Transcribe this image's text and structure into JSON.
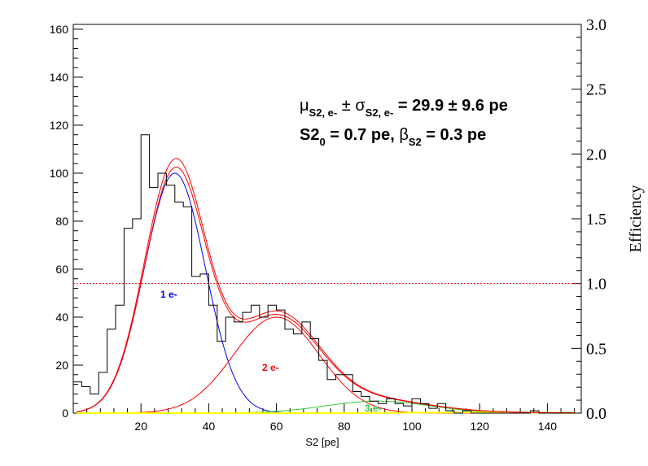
{
  "chart_data": {
    "type": "line",
    "xlabel": "S2 [pe]",
    "ylabel": "",
    "y2label": "Efficiency",
    "xlim": [
      0,
      150
    ],
    "ylim": [
      0,
      162
    ],
    "y2lim": [
      0,
      3.0
    ],
    "x_ticks": [
      20,
      40,
      60,
      80,
      100,
      120,
      140
    ],
    "y_ticks": [
      0,
      20,
      40,
      60,
      80,
      100,
      120,
      140,
      160
    ],
    "y2_ticks": [
      "0.0",
      "0.5",
      "1.0",
      "1.5",
      "2.0",
      "2.5",
      "3.0"
    ],
    "grid": false,
    "annotations": {
      "line1": {
        "mu": "μ",
        "mu_sub": "S2, e-",
        "pm1": " ± ",
        "sigma": "σ",
        "sigma_sub": "S2, e-",
        "value": " = 29.9 ± 9.6 pe"
      },
      "line2": {
        "s2": "S2",
        "s2_sub": "0",
        "s2_value": " = 0.7 pe,  ",
        "beta": "β",
        "beta_sub": "S2",
        "beta_value": " = 0.3 pe"
      }
    },
    "histogram": {
      "name": "",
      "color": "#000000",
      "bin_width": 2.5,
      "bin_start": 0,
      "counts": [
        13,
        11,
        8,
        17,
        35,
        45,
        77,
        81,
        116,
        94,
        100,
        95,
        88,
        86,
        57,
        58,
        45,
        30,
        40,
        38,
        42,
        45,
        40,
        45,
        43,
        35,
        33,
        38,
        31,
        22,
        14,
        16,
        16,
        9,
        7,
        5,
        4,
        6,
        4,
        3,
        6,
        4,
        2,
        4,
        1,
        0,
        1,
        0,
        0,
        0,
        0,
        0,
        0,
        0,
        1,
        0,
        0,
        0,
        0,
        0
      ]
    },
    "series": [
      {
        "name": "",
        "label": "1 e-",
        "color": "#0000ff",
        "mean": 30,
        "sigma": 9,
        "amplitude": 100
      },
      {
        "name": "",
        "label": "2 e-",
        "color": "#ff0000",
        "mean": 60,
        "sigma": 12.7,
        "amplitude": 40
      },
      {
        "name": "",
        "label": "3 e-",
        "color": "#33cc33",
        "mean": 90,
        "sigma": 15.5,
        "amplitude": 5
      },
      {
        "name": "",
        "label": "",
        "color": "#ffff00",
        "mean": 120,
        "sigma": 18,
        "amplitude": 0.3
      }
    ],
    "totals": [
      {
        "name": "",
        "color": "#ff0000",
        "scale": 1.0
      },
      {
        "name": "",
        "color": "#ff0000",
        "scale": 1.035
      }
    ],
    "efficiency_reference": {
      "value": 1.0,
      "color": "#ff0000",
      "style": "dashed"
    }
  }
}
